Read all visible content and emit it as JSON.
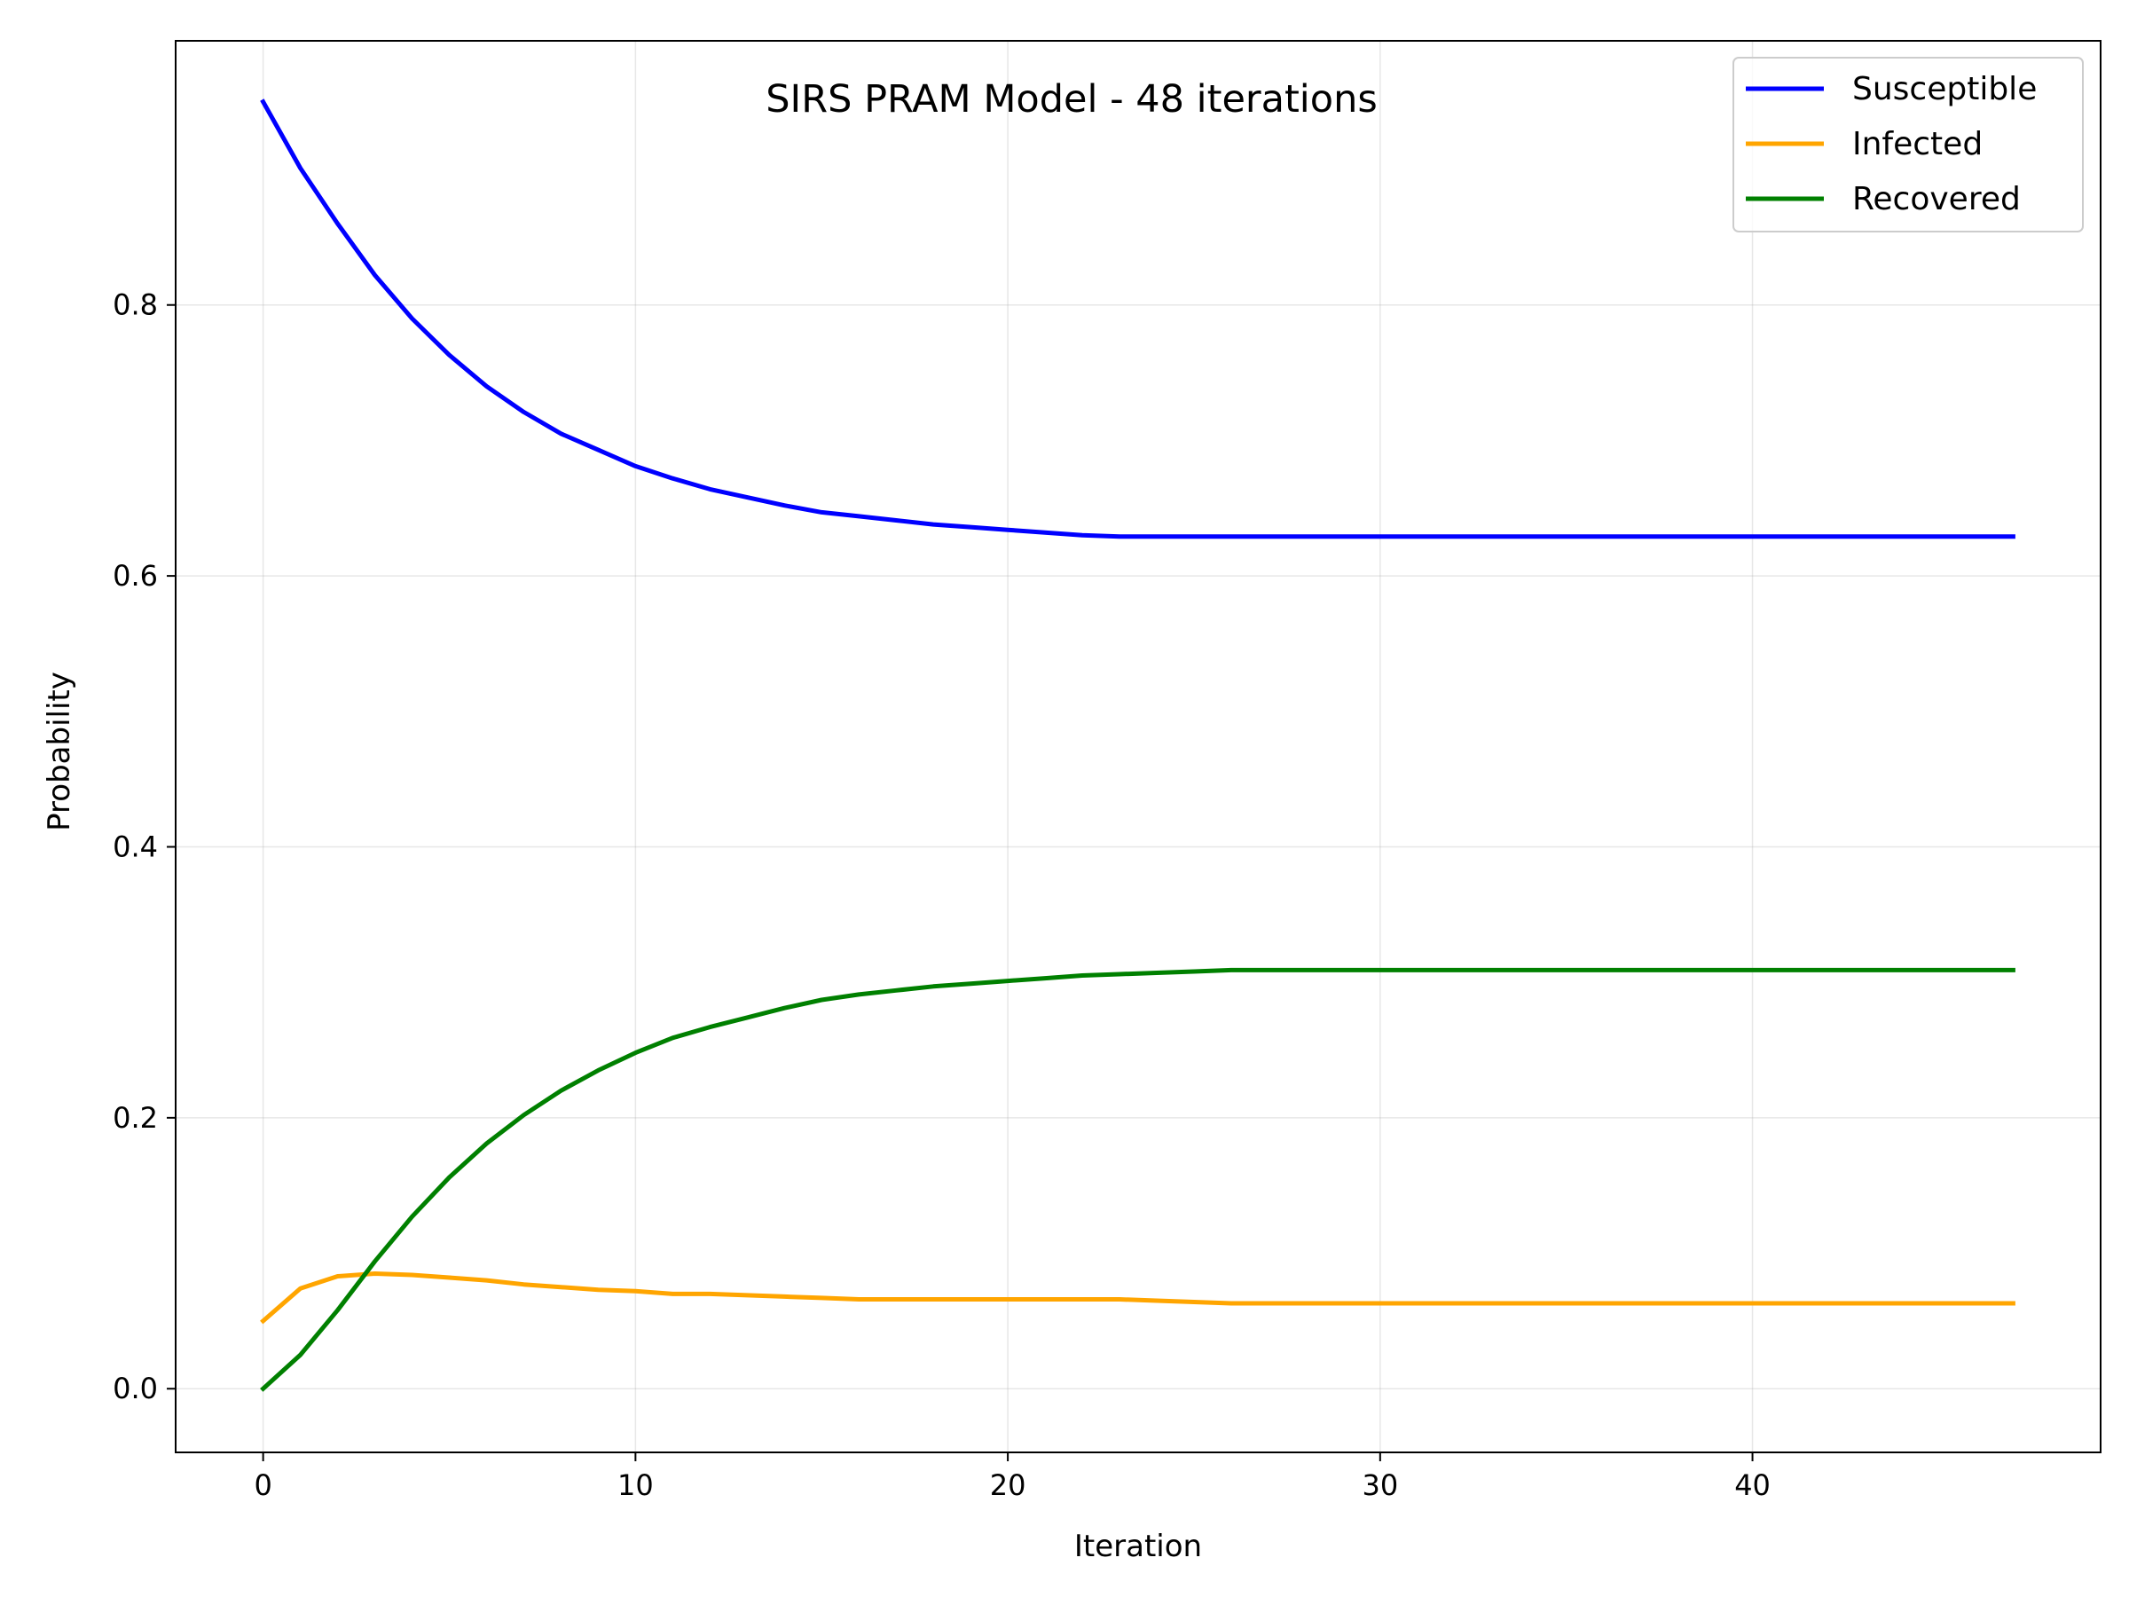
{
  "chart_data": {
    "type": "line",
    "title": "SIRS PRAM Model - 48 iterations",
    "xlabel": "Iteration",
    "ylabel": "Probability",
    "xlim": [
      -2.35,
      49.35
    ],
    "ylim": [
      -0.047,
      0.995
    ],
    "xticks": [
      0,
      10,
      20,
      30,
      40
    ],
    "xtick_labels": [
      "0",
      "10",
      "20",
      "30",
      "40"
    ],
    "yticks": [
      0.0,
      0.2,
      0.4,
      0.6,
      0.8
    ],
    "ytick_labels": [
      "0.0",
      "0.2",
      "0.4",
      "0.6",
      "0.8"
    ],
    "grid": true,
    "legend_position": "top-right",
    "x": [
      0,
      1,
      2,
      3,
      4,
      5,
      6,
      7,
      8,
      9,
      10,
      11,
      12,
      13,
      14,
      15,
      16,
      17,
      18,
      19,
      20,
      21,
      22,
      23,
      24,
      25,
      26,
      27,
      28,
      29,
      30,
      31,
      32,
      33,
      34,
      35,
      36,
      37,
      38,
      39,
      40,
      41,
      42,
      43,
      44,
      45,
      46,
      47
    ],
    "series": [
      {
        "name": "Susceptible",
        "color": "#0000ff",
        "values": [
          0.95,
          0.901,
          0.86,
          0.822,
          0.79,
          0.763,
          0.74,
          0.721,
          0.705,
          0.693,
          0.681,
          0.672,
          0.664,
          0.658,
          0.652,
          0.647,
          0.644,
          0.641,
          0.638,
          0.636,
          0.634,
          0.632,
          0.63,
          0.629,
          0.629,
          0.629,
          0.629,
          0.629,
          0.629,
          0.629,
          0.629,
          0.629,
          0.629,
          0.629,
          0.629,
          0.629,
          0.629,
          0.629,
          0.629,
          0.629,
          0.629,
          0.629,
          0.629,
          0.629,
          0.629,
          0.629,
          0.629,
          0.629
        ]
      },
      {
        "name": "Infected",
        "color": "#ffa500",
        "values": [
          0.05,
          0.074,
          0.083,
          0.085,
          0.084,
          0.082,
          0.08,
          0.077,
          0.075,
          0.073,
          0.072,
          0.07,
          0.07,
          0.069,
          0.068,
          0.067,
          0.066,
          0.066,
          0.066,
          0.066,
          0.066,
          0.066,
          0.066,
          0.066,
          0.065,
          0.064,
          0.063,
          0.063,
          0.063,
          0.063,
          0.063,
          0.063,
          0.063,
          0.063,
          0.063,
          0.063,
          0.063,
          0.063,
          0.063,
          0.063,
          0.063,
          0.063,
          0.063,
          0.063,
          0.063,
          0.063,
          0.063,
          0.063
        ]
      },
      {
        "name": "Recovered",
        "color": "#008000",
        "values": [
          0.0,
          0.025,
          0.058,
          0.094,
          0.127,
          0.156,
          0.181,
          0.202,
          0.22,
          0.235,
          0.248,
          0.259,
          0.267,
          0.274,
          0.281,
          0.287,
          0.291,
          0.294,
          0.297,
          0.299,
          0.301,
          0.303,
          0.305,
          0.306,
          0.307,
          0.308,
          0.309,
          0.309,
          0.309,
          0.309,
          0.309,
          0.309,
          0.309,
          0.309,
          0.309,
          0.309,
          0.309,
          0.309,
          0.309,
          0.309,
          0.309,
          0.309,
          0.309,
          0.309,
          0.309,
          0.309,
          0.309,
          0.309
        ]
      }
    ]
  }
}
